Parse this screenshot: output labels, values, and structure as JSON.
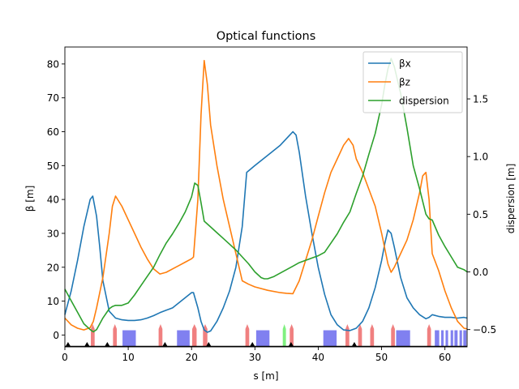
{
  "chart_data": {
    "type": "line",
    "title": "Optical functions",
    "xlabel": "s [m]",
    "ylabel": "β [m]",
    "y2label": "dispersion [m]",
    "xlim": [
      0,
      63.5
    ],
    "ylim": [
      -3.5,
      85
    ],
    "y2lim": [
      -0.65,
      1.95
    ],
    "xticks": [
      "0",
      "10",
      "20",
      "30",
      "40",
      "50",
      "60"
    ],
    "yticks": [
      "0",
      "10",
      "20",
      "30",
      "40",
      "50",
      "60",
      "70",
      "80"
    ],
    "y2ticks": [
      "−0.5",
      "0.0",
      "0.5",
      "1.0",
      "1.5"
    ],
    "legend": {
      "placement": "top-right",
      "entries": [
        "βx",
        "βz",
        "dispersion"
      ]
    },
    "series": [
      {
        "name": "βx",
        "axis": "left",
        "color": "#1f77b4",
        "x": [
          0,
          1,
          2,
          3,
          4,
          4.4,
          5,
          5.5,
          6,
          7,
          8,
          9,
          10,
          11,
          12,
          13,
          14,
          15,
          16,
          17,
          18,
          19,
          20,
          20.3,
          21,
          21.5,
          22,
          22.5,
          23,
          24,
          25,
          26,
          27,
          28,
          28.7,
          30,
          32,
          34,
          35.5,
          36,
          36.5,
          37,
          38,
          39,
          40,
          41,
          42,
          43,
          44,
          45,
          46,
          47,
          48,
          49,
          50,
          50.5,
          51,
          51.5,
          52,
          53,
          54,
          55,
          56,
          57,
          57.5,
          58,
          59,
          60,
          61,
          62,
          63,
          63.5
        ],
        "y": [
          6,
          13,
          22,
          32,
          40,
          41,
          35,
          26,
          16,
          7,
          5,
          4.5,
          4.3,
          4.3,
          4.5,
          5,
          5.7,
          6.6,
          7.3,
          8,
          9.5,
          11,
          12.5,
          12.5,
          8,
          4,
          1.5,
          0.8,
          1.2,
          4,
          8,
          13,
          20,
          32,
          48,
          50,
          53,
          56,
          59,
          60,
          59,
          54,
          41,
          30,
          20,
          12,
          6,
          3,
          1.5,
          1.3,
          2,
          4,
          8,
          14,
          22,
          27,
          31,
          30,
          26,
          17,
          11,
          8,
          6,
          4.8,
          5.2,
          6,
          5.5,
          5.2,
          5.2,
          5,
          5.2,
          5
        ]
      },
      {
        "name": "βz",
        "axis": "left",
        "color": "#ff7f0e",
        "x": [
          0,
          1,
          2,
          3,
          4,
          4.5,
          5,
          6,
          7,
          7.5,
          8,
          9,
          10,
          11,
          12,
          13,
          14,
          15,
          16,
          17,
          18,
          19,
          20,
          20.3,
          21,
          21.5,
          22,
          22.5,
          23,
          24,
          25,
          26,
          27,
          28,
          29,
          30,
          32,
          34,
          35,
          36,
          37,
          38,
          39,
          40,
          41,
          42,
          43,
          44,
          44.8,
          45.5,
          46,
          47,
          48,
          49,
          50,
          51,
          51.5,
          52,
          53,
          54,
          55,
          56,
          56.5,
          57,
          57.5,
          58,
          59,
          60,
          61,
          62,
          63,
          63.5
        ],
        "y": [
          5,
          3,
          2,
          1.5,
          2.2,
          4,
          8,
          17,
          30,
          38,
          41,
          38,
          34,
          30,
          26,
          22.5,
          19.5,
          18,
          18.5,
          19.5,
          20.5,
          21.5,
          22.5,
          23,
          40,
          65,
          81,
          74,
          62,
          50,
          40,
          32,
          24,
          16,
          15,
          14.2,
          13.2,
          12.5,
          12.3,
          12.2,
          16,
          22,
          28,
          35,
          42,
          48,
          52,
          56,
          58,
          56,
          52,
          48,
          43,
          38,
          30,
          21,
          18.5,
          20,
          24,
          28,
          34,
          42,
          47,
          48,
          40,
          24,
          19,
          13,
          8,
          4,
          2,
          1.8
        ]
      },
      {
        "name": "dispersion",
        "axis": "right",
        "color": "#2ca02c",
        "x": [
          0,
          1,
          2,
          3,
          4,
          4.5,
          5,
          6,
          7,
          7.5,
          8,
          9,
          10,
          11,
          12,
          13,
          14,
          15,
          16,
          17,
          18,
          19,
          20,
          20.5,
          21,
          21.5,
          22,
          23,
          24,
          25,
          26,
          27,
          28,
          29,
          30,
          31,
          31.5,
          32,
          33,
          34,
          35,
          36,
          37,
          38,
          39,
          40,
          41,
          42,
          43,
          44,
          45,
          46,
          47,
          48,
          49,
          50,
          50.5,
          51,
          51.5,
          52,
          53,
          54,
          55,
          56,
          57,
          57.5,
          58,
          59,
          60,
          61,
          62,
          63,
          63.5
        ],
        "y": [
          -0.15,
          -0.25,
          -0.35,
          -0.45,
          -0.5,
          -0.52,
          -0.5,
          -0.4,
          -0.32,
          -0.3,
          -0.29,
          -0.29,
          -0.27,
          -0.2,
          -0.12,
          -0.04,
          0.04,
          0.15,
          0.25,
          0.33,
          0.42,
          0.52,
          0.65,
          0.77,
          0.75,
          0.6,
          0.44,
          0.39,
          0.34,
          0.29,
          0.24,
          0.19,
          0.13,
          0.07,
          0,
          -0.05,
          -0.06,
          -0.06,
          -0.04,
          -0.01,
          0.02,
          0.05,
          0.08,
          0.1,
          0.12,
          0.14,
          0.17,
          0.25,
          0.33,
          0.43,
          0.52,
          0.68,
          0.83,
          1.02,
          1.2,
          1.45,
          1.62,
          1.76,
          1.85,
          1.78,
          1.55,
          1.25,
          0.92,
          0.72,
          0.5,
          0.46,
          0.45,
          0.32,
          0.22,
          0.13,
          0.04,
          0.02,
          0.0
        ]
      }
    ],
    "lattice": {
      "blue_blocks": [
        [
          9.1,
          11.2
        ],
        [
          17.7,
          19.7
        ],
        [
          30.2,
          32.3
        ],
        [
          40.8,
          42.9
        ],
        [
          52.3,
          54.5
        ],
        [
          58.4,
          59.1
        ],
        [
          59.4,
          59.8
        ],
        [
          60.1,
          60.5
        ],
        [
          60.9,
          61.3
        ],
        [
          61.5,
          62
        ],
        [
          62.3,
          62.7
        ],
        [
          62.9,
          63.4
        ]
      ],
      "red_peaks": [
        [
          4.1,
          4.7
        ],
        [
          7.6,
          8.2
        ],
        [
          14.8,
          15.4
        ],
        [
          20.1,
          20.8
        ],
        [
          21.8,
          22.5
        ],
        [
          28.5,
          29.1
        ],
        [
          35.5,
          36.1
        ],
        [
          44.3,
          44.9
        ],
        [
          46.3,
          46.9
        ],
        [
          48.2,
          48.8
        ],
        [
          51.5,
          52.1
        ],
        [
          57.2,
          57.8
        ]
      ],
      "green_peaks": [
        [
          34.4,
          34.9
        ]
      ],
      "markers": [
        0.5,
        3.5,
        6.7,
        15.8,
        22.7,
        29.6,
        35.7,
        45.7
      ]
    }
  }
}
